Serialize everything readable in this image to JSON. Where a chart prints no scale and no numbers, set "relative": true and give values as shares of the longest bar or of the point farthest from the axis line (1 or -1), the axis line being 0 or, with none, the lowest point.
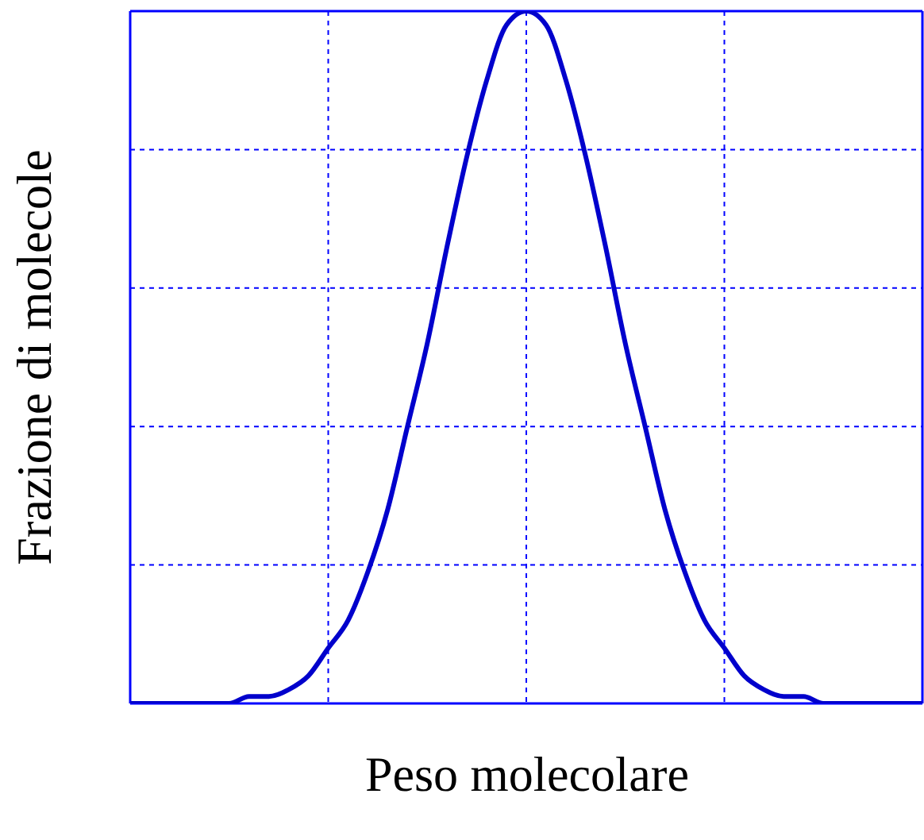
{
  "chart_data": {
    "type": "line",
    "relative": true,
    "xlabel": "Peso molecolare",
    "ylabel": "Frazione di molecole",
    "categories": [
      null,
      null,
      null,
      null,
      null,
      null,
      null,
      null,
      null,
      null,
      null,
      null,
      null,
      null,
      null,
      null,
      null,
      null,
      null,
      null,
      null,
      null,
      null,
      null,
      null,
      null,
      null,
      null,
      null,
      null,
      null,
      null,
      null,
      null,
      null,
      null,
      null,
      null,
      null,
      null,
      null
    ],
    "series": [
      {
        "color": "#0000cc",
        "values": [
          0,
          0,
          0,
          0,
          0,
          0,
          0.01,
          0.01,
          0.02,
          0.04,
          0.08,
          0.12,
          0.19,
          0.28,
          0.4,
          0.52,
          0.66,
          0.79,
          0.9,
          0.98,
          1,
          0.98,
          0.9,
          0.79,
          0.66,
          0.52,
          0.4,
          0.28,
          0.19,
          0.12,
          0.08,
          0.04,
          0.02,
          0.01,
          0.01,
          0,
          0,
          0,
          0,
          0,
          0
        ]
      }
    ],
    "grid": true,
    "tick_labels": false,
    "marker": "none",
    "line_style": "solid"
  }
}
